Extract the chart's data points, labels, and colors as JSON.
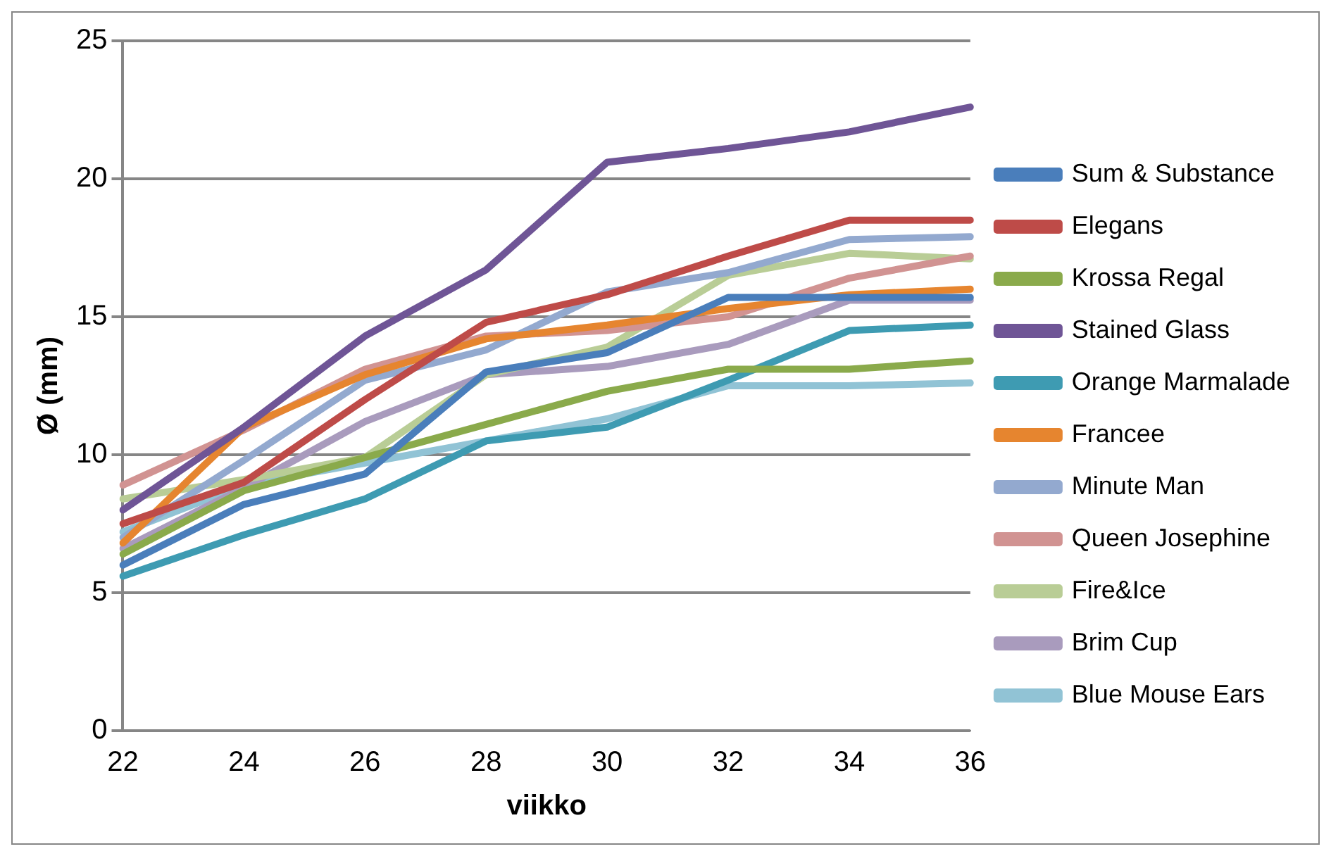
{
  "chart_data": {
    "type": "line",
    "xlabel": "viikko",
    "ylabel": "Ø (mm)",
    "categories": [
      "22",
      "24",
      "26",
      "28",
      "30",
      "32",
      "34",
      "36"
    ],
    "ylim": [
      0,
      25
    ],
    "yticks": [
      0,
      5,
      10,
      15,
      20,
      25
    ],
    "grid": "y",
    "legend": "right",
    "marker": "none",
    "line_style": "solid",
    "series": [
      {
        "name": "Sum & Substance",
        "color": "#4a7ebb",
        "values": [
          6.0,
          8.2,
          9.3,
          13.0,
          13.7,
          15.7,
          15.7,
          15.7
        ]
      },
      {
        "name": "Elegans",
        "color": "#be4b48",
        "values": [
          7.5,
          9.0,
          12.0,
          14.8,
          15.8,
          17.2,
          18.5,
          18.5
        ]
      },
      {
        "name": "Krossa Regal",
        "color": "#8aaa4b",
        "values": [
          6.4,
          8.7,
          9.9,
          11.1,
          12.3,
          13.1,
          13.1,
          13.4
        ]
      },
      {
        "name": "Stained Glass",
        "color": "#6f5596",
        "values": [
          8.0,
          11.0,
          14.3,
          16.7,
          20.6,
          21.1,
          21.7,
          22.6
        ]
      },
      {
        "name": "Orange Marmalade",
        "color": "#3e9bb2",
        "values": [
          5.6,
          7.1,
          8.4,
          10.5,
          11.0,
          12.7,
          14.5,
          14.7
        ]
      },
      {
        "name": "Francee",
        "color": "#e6852f",
        "values": [
          6.8,
          11.0,
          12.9,
          14.2,
          14.7,
          15.3,
          15.8,
          16.0
        ]
      },
      {
        "name": "Minute Man",
        "color": "#93a9cf",
        "values": [
          7.0,
          9.8,
          12.7,
          13.8,
          15.9,
          16.6,
          17.8,
          17.9
        ]
      },
      {
        "name": "Queen Josephine",
        "color": "#d19392",
        "values": [
          8.9,
          10.9,
          13.1,
          14.3,
          14.5,
          15.0,
          16.4,
          17.2
        ]
      },
      {
        "name": "Fire&Ice",
        "color": "#b9cd96",
        "values": [
          8.4,
          9.1,
          9.9,
          12.9,
          13.9,
          16.5,
          17.3,
          17.1
        ]
      },
      {
        "name": "Brim Cup",
        "color": "#a99bbd",
        "values": [
          6.6,
          8.8,
          11.2,
          12.9,
          13.2,
          14.0,
          15.6,
          15.6
        ]
      },
      {
        "name": "Blue Mouse Ears",
        "color": "#91c3d5",
        "values": [
          7.2,
          8.9,
          9.7,
          10.5,
          11.3,
          12.5,
          12.5,
          12.6
        ]
      }
    ]
  }
}
